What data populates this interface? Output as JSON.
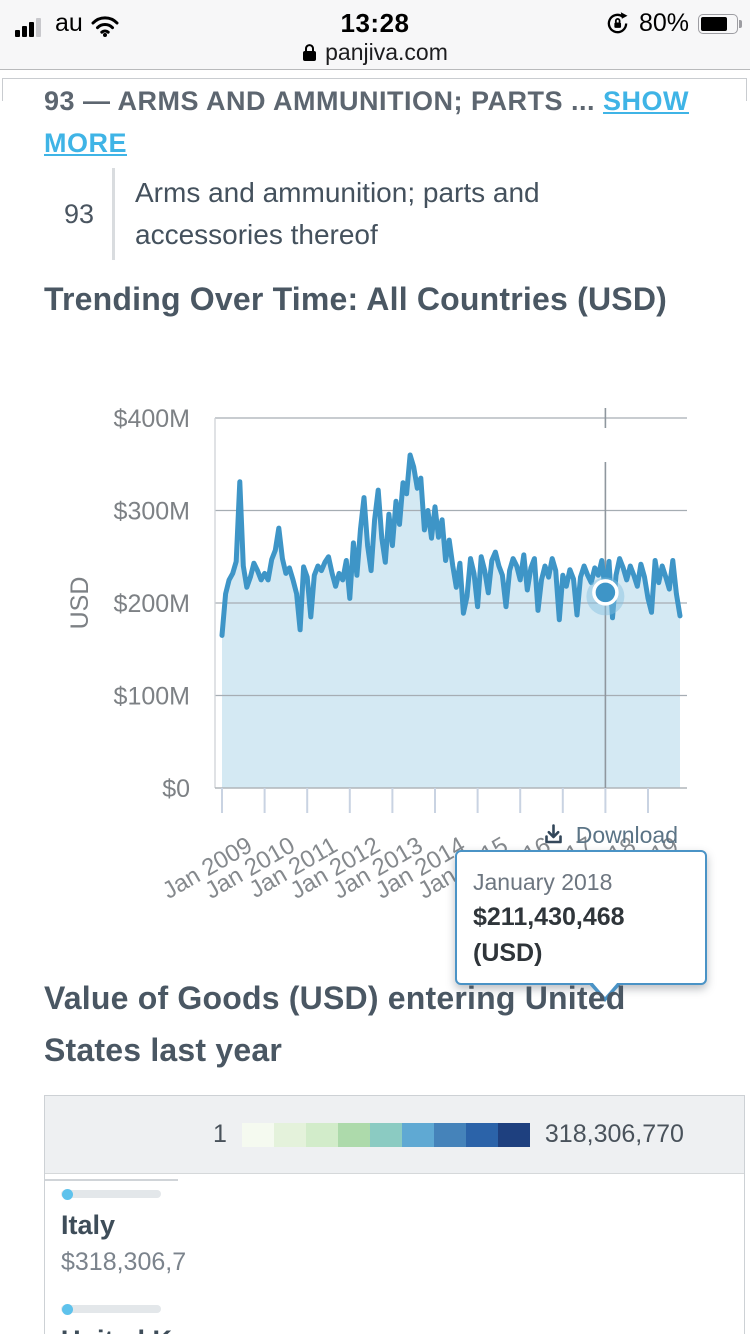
{
  "status_bar": {
    "carrier": "au",
    "time": "13:28",
    "battery_percent": "80%"
  },
  "url_bar": {
    "domain": "panjiva.com"
  },
  "header": {
    "title_prefix": "93 — ARMS AND AMMUNITION; PARTS ... ",
    "show_more_label": "SHOW MORE"
  },
  "hs_entry": {
    "code": "93",
    "description": "Arms and ammunition; parts and accessories thereof"
  },
  "trend_section": {
    "title": "Trending Over Time: All Countries (USD)",
    "download_label": "Download",
    "tooltip": {
      "label": "January 2018",
      "value": "$211,430,468 (USD)"
    }
  },
  "chart_data": {
    "type": "area",
    "title": "Trending Over Time: All Countries (USD)",
    "xlabel": "",
    "ylabel": "USD",
    "y_ticks": [
      "$400M",
      "$300M",
      "$200M",
      "$100M",
      "$0"
    ],
    "ylim_musd": [
      0,
      400
    ],
    "x_ticks": [
      "Jan 2009",
      "Jan 2010",
      "Jan 2011",
      "Jan 2012",
      "Jan 2013",
      "Jan 2014",
      "Jan 2015",
      "Jan 2016",
      "Jan 2017",
      "Jan 2018",
      "Jan 2019"
    ],
    "grid": true,
    "series": [
      {
        "name": "All Countries (USD)",
        "cadence": "monthly",
        "start": "Jan 2009",
        "values_musd": [
          165,
          210,
          225,
          232,
          245,
          331,
          240,
          217,
          228,
          243,
          235,
          225,
          232,
          225,
          247,
          257,
          281,
          248,
          232,
          238,
          225,
          210,
          171,
          239,
          228,
          185,
          230,
          240,
          235,
          244,
          250,
          232,
          218,
          232,
          225,
          246,
          205,
          265,
          230,
          280,
          314,
          262,
          235,
          290,
          322,
          270,
          244,
          296,
          262,
          310,
          285,
          330,
          318,
          360,
          347,
          324,
          335,
          279,
          300,
          270,
          304,
          271,
          290,
          246,
          268,
          240,
          217,
          243,
          189,
          207,
          248,
          232,
          196,
          250,
          235,
          211,
          246,
          255,
          240,
          230,
          196,
          235,
          248,
          240,
          225,
          252,
          214,
          238,
          248,
          192,
          225,
          240,
          228,
          248,
          235,
          182,
          230,
          218,
          236,
          226,
          187,
          228,
          240,
          230,
          222,
          238,
          230,
          246,
          211.43,
          245,
          184,
          230,
          248,
          238,
          225,
          240,
          230,
          218,
          242,
          228,
          205,
          190,
          246,
          222,
          240,
          228,
          215,
          246,
          210,
          186
        ]
      }
    ],
    "highlight": {
      "label": "January 2018",
      "value_text": "$211,430,468 (USD)",
      "month_index": 108,
      "value_musd": 211.43
    },
    "legend_position": "none",
    "colors": {
      "line": "#3e95c7",
      "fill": "#d4e9f3",
      "grid": "#a6adb3",
      "border": "#cfd3d7",
      "axis": "#b0b5ba",
      "tick": "#c9d3e2",
      "crosshair": "#8f979e",
      "halo": "rgba(130,190,225,0.45)"
    }
  },
  "value_section": {
    "title": "Value of Goods (USD) entering United States last year",
    "legend": {
      "min": "1",
      "max": "318,306,770",
      "swatches": [
        "#f5faf0",
        "#e4f2db",
        "#d2ecca",
        "#addaab",
        "#8bcbc2",
        "#5fa9d3",
        "#4583ba",
        "#2b63a9",
        "#1e407f"
      ]
    },
    "countries": [
      {
        "name": "Italy",
        "value": "$318,306,7"
      },
      {
        "name": "United K",
        "value": ""
      }
    ]
  }
}
